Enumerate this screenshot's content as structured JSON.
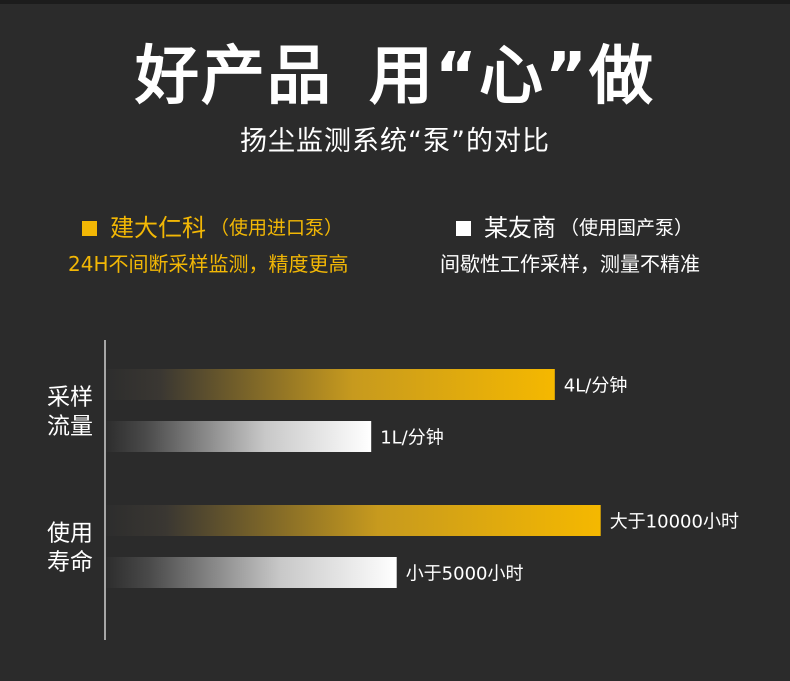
{
  "header": {
    "title_part1": "好产品",
    "title_part2": "用“心”做",
    "subtitle": "扬尘监测系统“泵”的对比"
  },
  "legend": [
    {
      "name": "建大仁科",
      "note": "（使用进口泵）",
      "desc": "24H不间断采样监测，精度更高",
      "color": "#f2b705"
    },
    {
      "name": "某友商",
      "note": "（使用国产泵）",
      "desc": "间歇性工作采样，测量不精准",
      "color": "#ffffff"
    }
  ],
  "chart_data": {
    "type": "bar",
    "orientation": "horizontal",
    "grid": false,
    "categories": [
      [
        "采样",
        "流量"
      ],
      [
        "使用",
        "寿命"
      ]
    ],
    "series": [
      {
        "name": "建大仁科",
        "color": "#f2b705",
        "values": [
          0.88,
          0.97
        ],
        "labels": [
          "4L/分钟",
          "大于10000小时"
        ]
      },
      {
        "name": "某友商",
        "color": "#ffffff",
        "values": [
          0.52,
          0.57
        ],
        "labels": [
          "1L/分钟",
          "小于5000小时"
        ]
      }
    ]
  }
}
